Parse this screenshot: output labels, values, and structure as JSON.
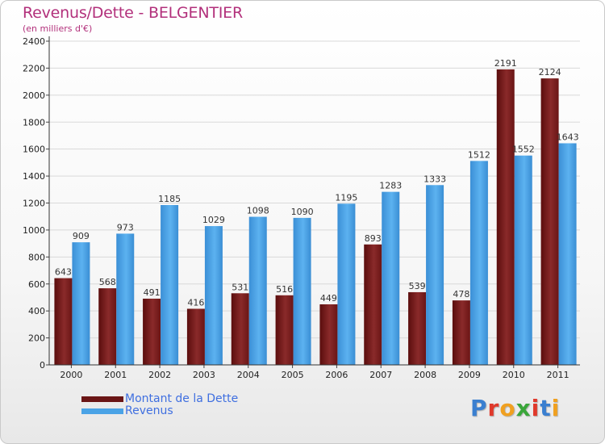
{
  "title": "Revenus/Dette - BELGENTIER",
  "subtitle": "(en milliers d'€)",
  "brand": "Proxiti",
  "colors": {
    "dette": "#7a1c1c",
    "revenus": "#4aa3e6",
    "title": "#b2307b",
    "legend_text": "#3f6fe0"
  },
  "chart_data": {
    "type": "bar",
    "title": "Revenus/Dette - BELGENTIER",
    "ylabel": "(en milliers d'€)",
    "xlabel": "",
    "categories": [
      "2000",
      "2001",
      "2002",
      "2003",
      "2004",
      "2005",
      "2006",
      "2007",
      "2008",
      "2009",
      "2010",
      "2011"
    ],
    "series": [
      {
        "name": "Montant de la Dette",
        "values": [
          643,
          568,
          491,
          416,
          531,
          516,
          449,
          893,
          539,
          478,
          2191,
          2124
        ]
      },
      {
        "name": "Revenus",
        "values": [
          909,
          973,
          1185,
          1029,
          1098,
          1090,
          1195,
          1283,
          1333,
          1512,
          1552,
          1643
        ]
      }
    ],
    "yticks": [
      0,
      200,
      400,
      600,
      800,
      1000,
      1200,
      1400,
      1600,
      1800,
      2000,
      2200,
      2400
    ],
    "ylim": [
      0,
      2400
    ],
    "grid": true,
    "legend": "bottom-left"
  }
}
